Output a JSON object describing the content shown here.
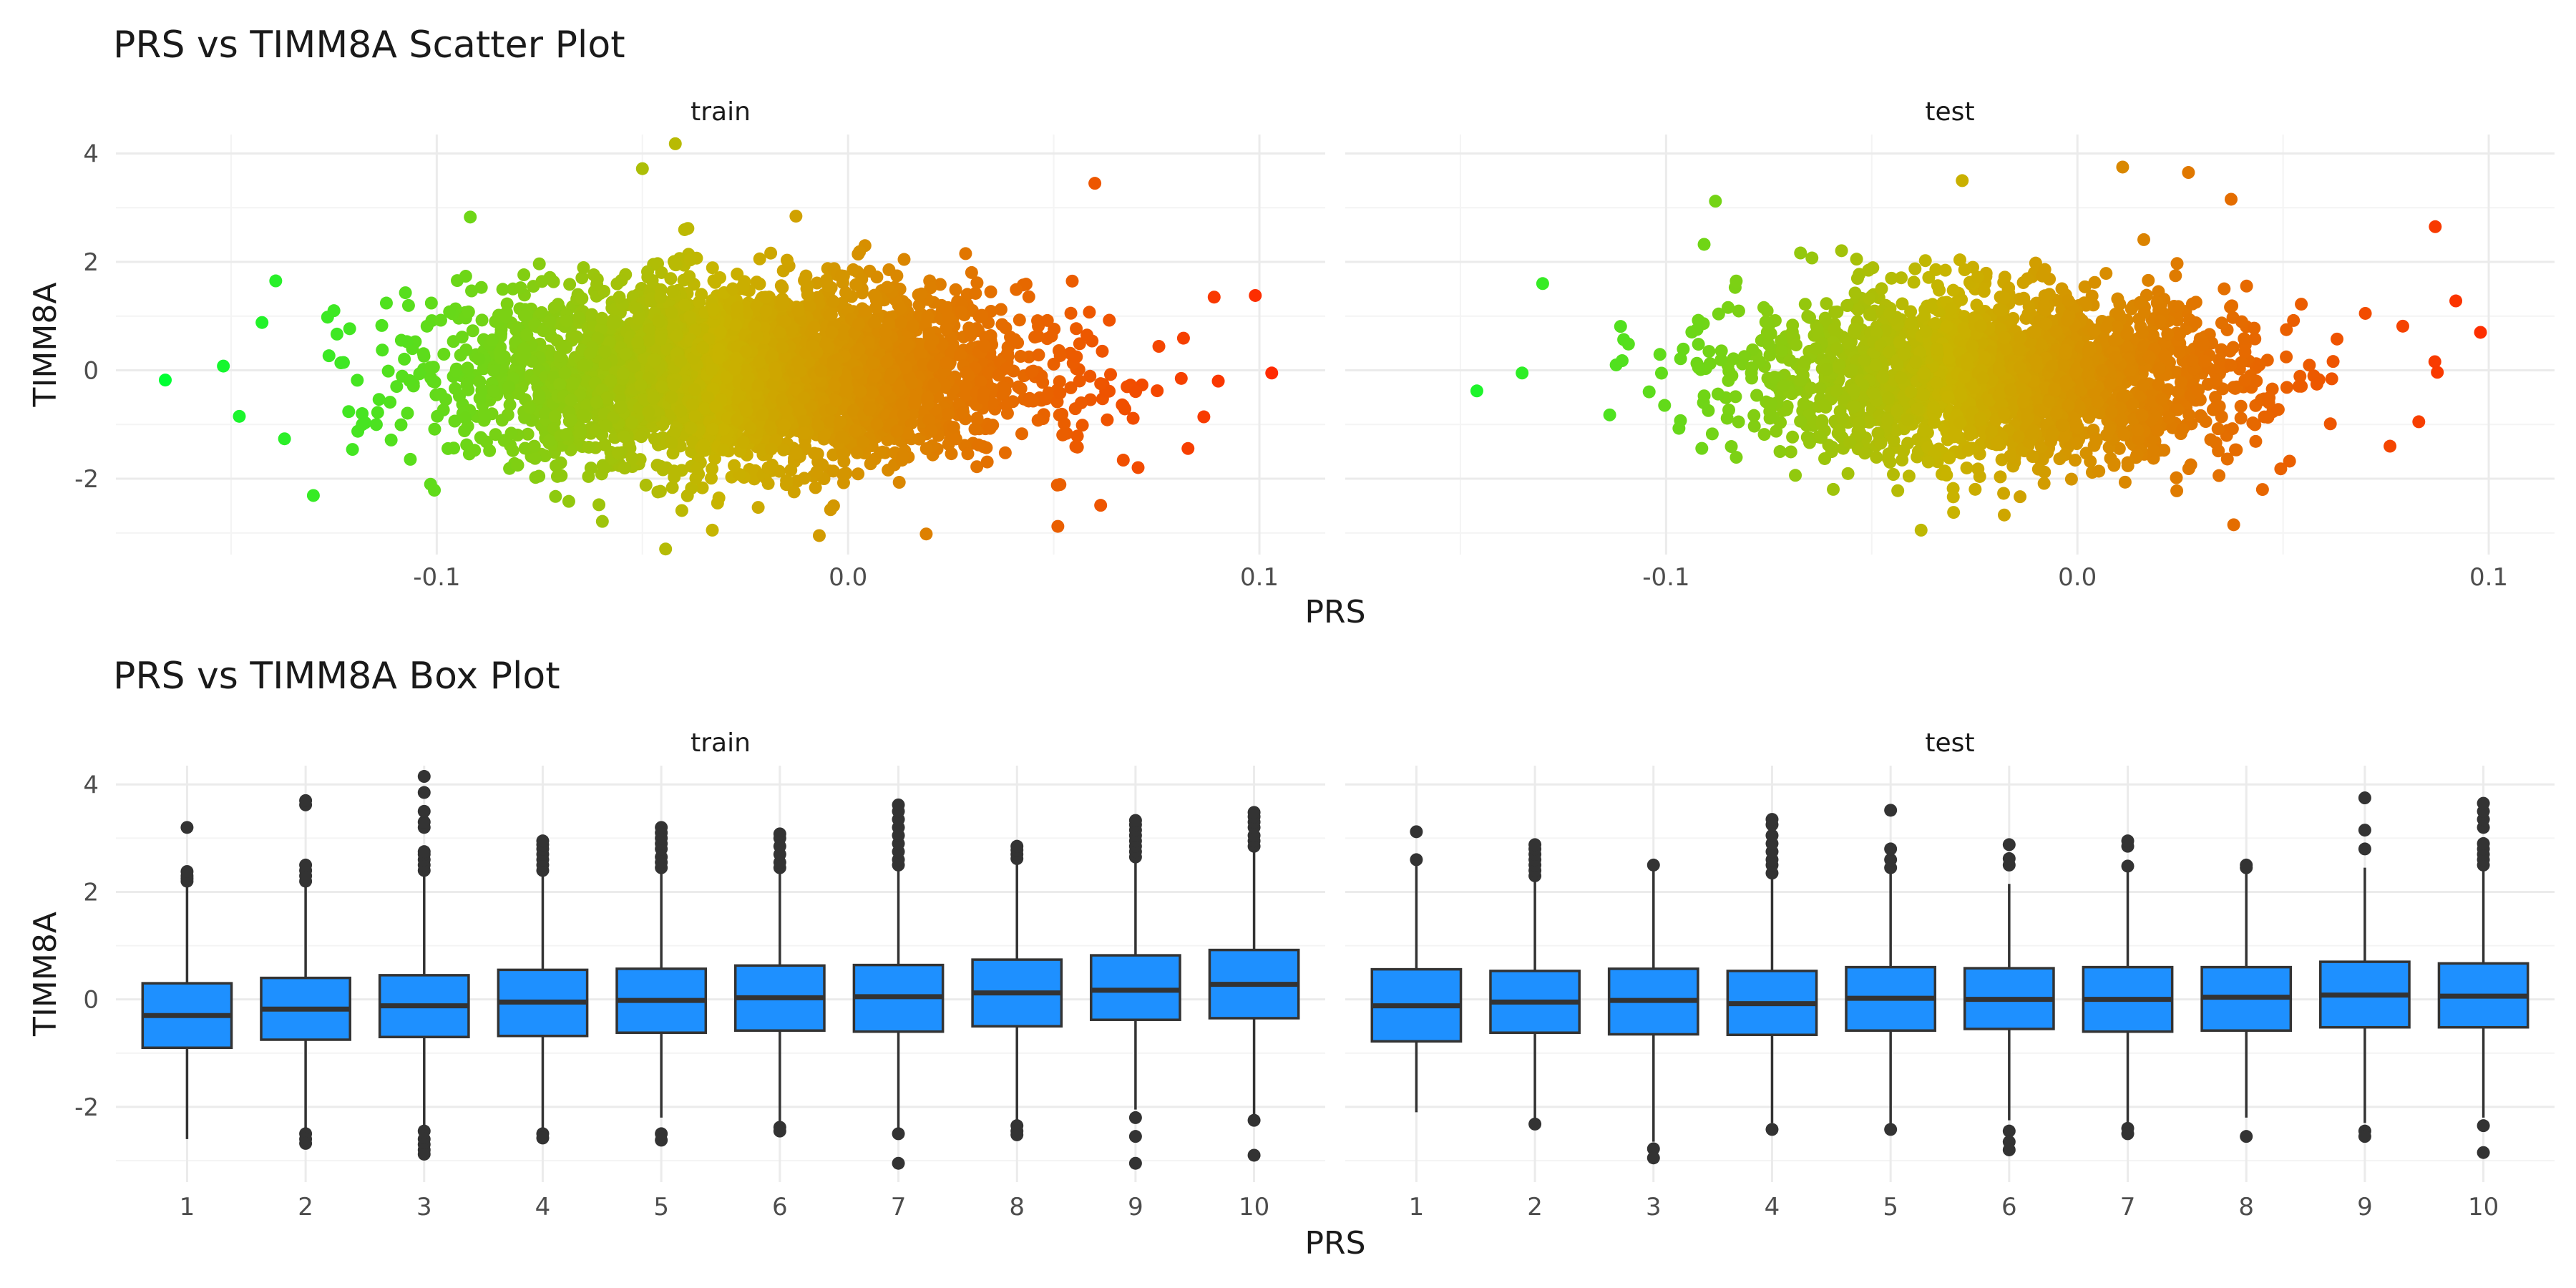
{
  "chart_data": [
    {
      "type": "scatter",
      "title": "PRS vs TIMM8A Scatter Plot",
      "xlabel": "PRS",
      "ylabel": "TIMM8A",
      "xlim": [
        -0.178,
        0.116
      ],
      "ylim": [
        -3.4,
        4.35
      ],
      "x_ticks": [
        -0.1,
        0.0,
        0.1
      ],
      "x_tick_labels": [
        "-0.1",
        "0.0",
        "0.1"
      ],
      "y_ticks": [
        -2,
        0,
        2,
        4
      ],
      "y_tick_labels": [
        "-2",
        "0",
        "2",
        "4"
      ],
      "grid": true,
      "legend": "none",
      "color_encoding": "point color follows PRS (green low, orange/red high)",
      "color_scale": {
        "low": "#00ff33",
        "mid": "#c8b400",
        "high": "#ff2a00"
      },
      "facets": [
        {
          "label": "train",
          "center": [
            -0.025,
            -0.05
          ],
          "sd": [
            0.045,
            0.85
          ],
          "n_core": 3800,
          "outliers": [
            [
              -0.166,
              -0.18
            ],
            [
              0.103,
              -0.05
            ],
            [
              0.099,
              1.38
            ],
            [
              0.089,
              1.35
            ],
            [
              -0.148,
              -0.85
            ],
            [
              -0.042,
              4.18
            ],
            [
              -0.05,
              3.72
            ],
            [
              -0.007,
              -3.05
            ],
            [
              0.019,
              -3.02
            ],
            [
              0.051,
              -2.88
            ],
            [
              -0.13,
              -2.31
            ],
            [
              -0.125,
              1.1
            ],
            [
              0.081,
              -0.15
            ],
            [
              0.09,
              -0.2
            ],
            [
              0.06,
              3.45
            ],
            [
              -0.033,
              -2.95
            ]
          ]
        },
        {
          "label": "test",
          "center": [
            -0.02,
            -0.1
          ],
          "sd": [
            0.04,
            0.8
          ],
          "n_core": 2400,
          "outliers": [
            [
              -0.146,
              -0.38
            ],
            [
              0.098,
              0.7
            ],
            [
              0.087,
              2.65
            ],
            [
              0.092,
              1.28
            ],
            [
              -0.135,
              -0.05
            ],
            [
              -0.088,
              3.12
            ],
            [
              0.011,
              3.75
            ],
            [
              0.027,
              3.65
            ],
            [
              -0.038,
              -2.95
            ],
            [
              0.038,
              -2.85
            ],
            [
              0.076,
              -1.4
            ],
            [
              0.083,
              -0.95
            ],
            [
              -0.13,
              1.6
            ],
            [
              -0.028,
              3.5
            ],
            [
              0.045,
              -2.2
            ],
            [
              0.07,
              1.05
            ]
          ]
        }
      ]
    },
    {
      "type": "box",
      "title": "PRS vs TIMM8A Box Plot",
      "xlabel": "PRS",
      "ylabel": "TIMM8A",
      "ylim": [
        -3.4,
        4.35
      ],
      "y_ticks": [
        -2,
        0,
        2,
        4
      ],
      "y_tick_labels": [
        "-2",
        "0",
        "2",
        "4"
      ],
      "categories": [
        "1",
        "2",
        "3",
        "4",
        "5",
        "6",
        "7",
        "8",
        "9",
        "10"
      ],
      "grid": true,
      "box_color": "#1e90ff",
      "facets": [
        {
          "label": "train",
          "boxes": [
            {
              "q1": -0.9,
              "median": -0.3,
              "q3": 0.3,
              "whisker_low": -2.6,
              "whisker_high": 2.15,
              "outliers": [
                2.2,
                2.25,
                2.3,
                2.38,
                3.2
              ]
            },
            {
              "q1": -0.75,
              "median": -0.18,
              "q3": 0.4,
              "whisker_low": -2.4,
              "whisker_high": 2.15,
              "outliers": [
                2.2,
                2.3,
                2.4,
                2.5,
                3.62,
                3.7,
                -2.5,
                -2.6,
                -2.68
              ]
            },
            {
              "q1": -0.7,
              "median": -0.12,
              "q3": 0.45,
              "whisker_low": -2.35,
              "whisker_high": 2.3,
              "outliers": [
                2.4,
                2.5,
                2.6,
                2.7,
                2.75,
                3.2,
                3.3,
                3.5,
                3.85,
                4.15,
                -2.45,
                -2.6,
                -2.7,
                -2.8,
                -2.88
              ]
            },
            {
              "q1": -0.68,
              "median": -0.05,
              "q3": 0.55,
              "whisker_low": -2.45,
              "whisker_high": 2.35,
              "outliers": [
                2.4,
                2.5,
                2.6,
                2.7,
                2.8,
                2.88,
                2.95,
                -2.5,
                -2.58
              ]
            },
            {
              "q1": -0.62,
              "median": -0.02,
              "q3": 0.57,
              "whisker_low": -2.2,
              "whisker_high": 2.4,
              "outliers": [
                2.45,
                2.55,
                2.65,
                2.8,
                2.9,
                3.0,
                3.1,
                3.2,
                -2.5,
                -2.62
              ]
            },
            {
              "q1": -0.58,
              "median": 0.03,
              "q3": 0.63,
              "whisker_low": -2.35,
              "whisker_high": 2.4,
              "outliers": [
                2.45,
                2.55,
                2.7,
                2.85,
                3.0,
                3.08,
                -2.38,
                -2.45
              ]
            },
            {
              "q1": -0.6,
              "median": 0.05,
              "q3": 0.64,
              "whisker_low": -2.4,
              "whisker_high": 2.45,
              "outliers": [
                2.5,
                2.6,
                2.75,
                2.9,
                3.05,
                3.2,
                3.35,
                3.5,
                3.62,
                -2.5,
                -3.05
              ]
            },
            {
              "q1": -0.5,
              "median": 0.12,
              "q3": 0.74,
              "whisker_low": -2.3,
              "whisker_high": 2.55,
              "outliers": [
                2.62,
                2.7,
                2.78,
                2.85,
                -2.35,
                -2.45,
                -2.52
              ]
            },
            {
              "q1": -0.38,
              "median": 0.17,
              "q3": 0.82,
              "whisker_low": -2.05,
              "whisker_high": 2.6,
              "outliers": [
                2.65,
                2.75,
                2.85,
                2.95,
                3.05,
                3.15,
                3.25,
                3.33,
                -2.2,
                -2.55,
                -3.05
              ]
            },
            {
              "q1": -0.35,
              "median": 0.28,
              "q3": 0.92,
              "whisker_low": -2.15,
              "whisker_high": 2.8,
              "outliers": [
                2.85,
                2.95,
                3.05,
                3.2,
                3.3,
                3.4,
                3.48,
                -2.25,
                -2.9
              ]
            }
          ]
        },
        {
          "label": "test",
          "boxes": [
            {
              "q1": -0.78,
              "median": -0.12,
              "q3": 0.56,
              "whisker_low": -2.1,
              "whisker_high": 2.5,
              "outliers": [
                2.6,
                3.12
              ]
            },
            {
              "q1": -0.62,
              "median": -0.05,
              "q3": 0.53,
              "whisker_low": -2.25,
              "whisker_high": 2.25,
              "outliers": [
                2.3,
                2.4,
                2.5,
                2.6,
                2.7,
                2.8,
                2.88,
                -2.32
              ]
            },
            {
              "q1": -0.65,
              "median": -0.02,
              "q3": 0.57,
              "whisker_low": -2.65,
              "whisker_high": 2.45,
              "outliers": [
                2.5,
                -2.78,
                -2.95
              ]
            },
            {
              "q1": -0.66,
              "median": -0.08,
              "q3": 0.53,
              "whisker_low": -2.3,
              "whisker_high": 2.25,
              "outliers": [
                2.35,
                2.5,
                2.6,
                2.75,
                2.9,
                3.05,
                3.25,
                3.35,
                -2.42
              ]
            },
            {
              "q1": -0.58,
              "median": 0.02,
              "q3": 0.6,
              "whisker_low": -2.35,
              "whisker_high": 2.35,
              "outliers": [
                2.45,
                2.6,
                2.8,
                3.52,
                -2.42
              ]
            },
            {
              "q1": -0.55,
              "median": 0.0,
              "q3": 0.58,
              "whisker_low": -2.25,
              "whisker_high": 2.15,
              "outliers": [
                2.5,
                2.62,
                2.88,
                -2.45,
                -2.65,
                -2.8
              ]
            },
            {
              "q1": -0.6,
              "median": 0.0,
              "q3": 0.6,
              "whisker_low": -2.3,
              "whisker_high": 2.4,
              "outliers": [
                2.48,
                2.85,
                2.95,
                -2.4,
                -2.5
              ]
            },
            {
              "q1": -0.58,
              "median": 0.04,
              "q3": 0.6,
              "whisker_low": -2.2,
              "whisker_high": 2.4,
              "outliers": [
                2.45,
                2.5,
                -2.55
              ]
            },
            {
              "q1": -0.52,
              "median": 0.08,
              "q3": 0.7,
              "whisker_low": -2.3,
              "whisker_high": 2.45,
              "outliers": [
                2.8,
                3.15,
                3.75,
                -2.45,
                -2.55
              ]
            },
            {
              "q1": -0.52,
              "median": 0.06,
              "q3": 0.67,
              "whisker_low": -2.2,
              "whisker_high": 2.45,
              "outliers": [
                2.5,
                2.6,
                2.7,
                2.8,
                2.9,
                3.2,
                3.35,
                3.5,
                3.65,
                -2.35,
                -2.85
              ]
            }
          ]
        }
      ]
    }
  ]
}
